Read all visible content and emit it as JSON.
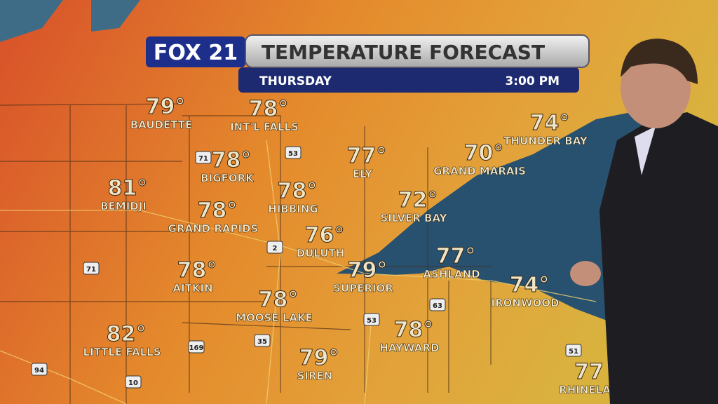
{
  "header": {
    "logo": "FOX 21",
    "title": "TEMPERATURE FORECAST",
    "day": "THURSDAY",
    "time": "3:00 PM"
  },
  "cities": [
    {
      "name": "BAUDETTE",
      "temp": "79°"
    },
    {
      "name": "INT'L FALLS",
      "temp": "78°"
    },
    {
      "name": "BIGFORK",
      "temp": "78°"
    },
    {
      "name": "BEMIDJI",
      "temp": "81°"
    },
    {
      "name": "GRAND RAPIDS",
      "temp": "78°"
    },
    {
      "name": "HIBBING",
      "temp": "78°"
    },
    {
      "name": "ELY",
      "temp": "77°"
    },
    {
      "name": "GRAND MARAIS",
      "temp": "70°"
    },
    {
      "name": "THUNDER BAY",
      "temp": "74°"
    },
    {
      "name": "SILVER BAY",
      "temp": "72°"
    },
    {
      "name": "DULUTH",
      "temp": "76°"
    },
    {
      "name": "SUPERIOR",
      "temp": "79°"
    },
    {
      "name": "ASHLAND",
      "temp": "77°"
    },
    {
      "name": "IRONWOOD",
      "temp": "74°"
    },
    {
      "name": "AITKIN",
      "temp": "78°"
    },
    {
      "name": "MOOSE LAKE",
      "temp": "78°"
    },
    {
      "name": "LITTLE FALLS",
      "temp": "82°"
    },
    {
      "name": "HAYWARD",
      "temp": "78°"
    },
    {
      "name": "SIREN",
      "temp": "79°"
    },
    {
      "name": "RHINELA",
      "temp": "77"
    }
  ],
  "routes": [
    "71",
    "53",
    "2",
    "71",
    "169",
    "35",
    "53",
    "63",
    "94",
    "10",
    "51"
  ]
}
